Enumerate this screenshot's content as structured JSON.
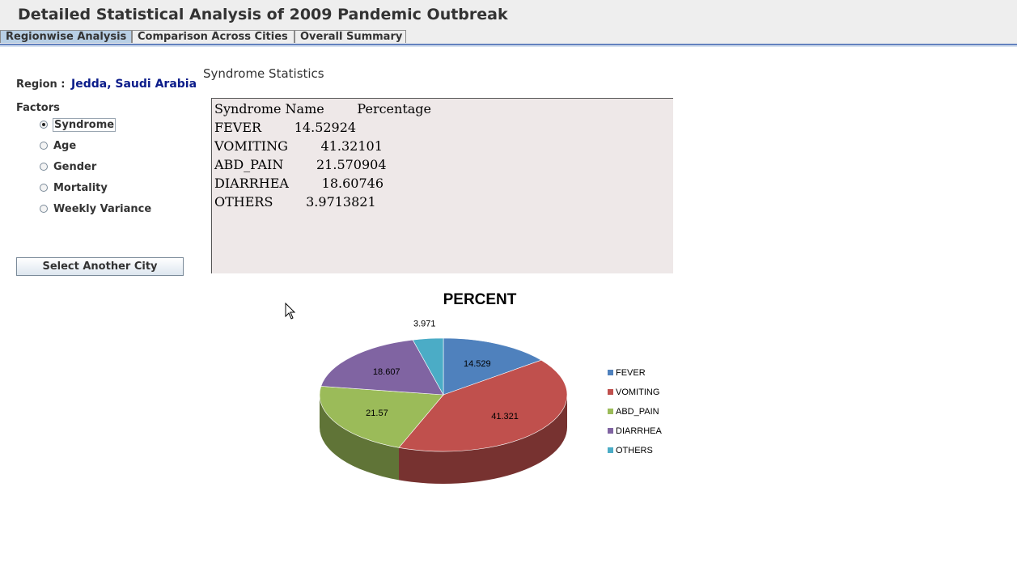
{
  "window": {
    "title": "Detailed Statistical Analysis of 2009 Pandemic Outbreak"
  },
  "tabs": [
    {
      "label": "Regionwise Analysis",
      "active": true
    },
    {
      "label": "Comparison Across Cities",
      "active": false
    },
    {
      "label": "Overall Summary",
      "active": false
    }
  ],
  "sidebar": {
    "region_label": "Region :",
    "region_value": "Jedda, Saudi Arabia",
    "factors_label": "Factors",
    "factors": [
      {
        "label": "Syndrome",
        "selected": true
      },
      {
        "label": "Age",
        "selected": false
      },
      {
        "label": "Gender",
        "selected": false
      },
      {
        "label": "Mortality",
        "selected": false
      },
      {
        "label": "Weekly Variance",
        "selected": false
      }
    ],
    "select_button": "Select Another City"
  },
  "stats": {
    "title": "Syndrome Statistics",
    "lines": [
      "Syndrome Name        Percentage",
      "FEVER        14.52924",
      "VOMITING        41.32101",
      "ABD_PAIN        21.570904",
      "DIARRHEA        18.60746",
      "OTHERS        3.9713821"
    ]
  },
  "chart_data": {
    "type": "pie",
    "title": "PERCENT",
    "legend_position": "right",
    "slices": [
      {
        "label": "FEVER",
        "value": 14.529,
        "display": "14.529",
        "color": "#4f81bd"
      },
      {
        "label": "VOMITING",
        "value": 41.321,
        "display": "41.321",
        "color": "#c0504d"
      },
      {
        "label": "ABD_PAIN",
        "value": 21.57,
        "display": "21.57",
        "color": "#9bbb59"
      },
      {
        "label": "DIARRHEA",
        "value": 18.607,
        "display": "18.607",
        "color": "#8064a2"
      },
      {
        "label": "OTHERS",
        "value": 3.971,
        "display": "3.971",
        "color": "#4bacc6"
      }
    ]
  }
}
